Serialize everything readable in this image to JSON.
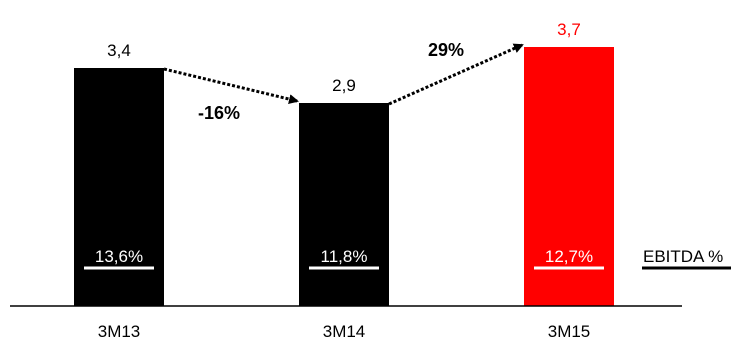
{
  "chart_data": {
    "type": "bar",
    "categories": [
      "3M13",
      "3M14",
      "3M15"
    ],
    "values": [
      3.4,
      2.9,
      3.7
    ],
    "value_labels": [
      "3,4",
      "2,9",
      "3,7"
    ],
    "ebitda_margin_labels": [
      "13,6%",
      "11,8%",
      "12,7%"
    ],
    "ebitda_margin_label": "EBITDA %",
    "growth_annotations": [
      {
        "from": "3M13",
        "to": "3M14",
        "label": "-16%"
      },
      {
        "from": "3M14",
        "to": "3M15",
        "label": "29%"
      }
    ],
    "highlight_index": 2,
    "grid": false,
    "legend": "none"
  },
  "colors": {
    "bar": "#000000",
    "highlight": "#ff0000",
    "text": "#000000",
    "margin_text": "#ffffff"
  }
}
